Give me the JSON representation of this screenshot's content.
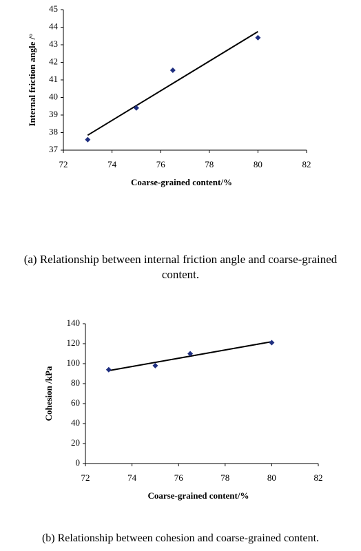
{
  "chart_data": [
    {
      "type": "scatter",
      "x_label": "Coarse-grained content/%",
      "y_label": "Internal friction angle /°",
      "caption": "(a) Relationship between internal friction angle and coarse-grained content.",
      "x": [
        73,
        75,
        76.5,
        80
      ],
      "values": [
        37.6,
        39.4,
        41.55,
        43.4
      ],
      "color": "#1f2f80",
      "trendline": {
        "x": [
          73,
          80
        ],
        "values": [
          37.85,
          43.75
        ],
        "color": "#000000"
      },
      "xlim": [
        72,
        82
      ],
      "xticks": [
        72,
        74,
        76,
        78,
        80,
        82
      ],
      "ylim": [
        37,
        45
      ],
      "yticks": [
        37,
        38,
        39,
        40,
        41,
        42,
        43,
        44,
        45
      ]
    },
    {
      "type": "scatter",
      "x_label": "Coarse-grained content/%",
      "y_label": "Cohesion /kPa",
      "caption": "(b) Relationship between cohesion and coarse-grained content.",
      "x": [
        73,
        75,
        76.5,
        80
      ],
      "values": [
        94,
        98,
        110,
        121
      ],
      "color": "#1f2f80",
      "trendline": {
        "x": [
          73,
          80
        ],
        "values": [
          93,
          122
        ],
        "color": "#000000"
      },
      "xlim": [
        72,
        82
      ],
      "xticks": [
        72,
        74,
        76,
        78,
        80,
        82
      ],
      "ylim": [
        0,
        140
      ],
      "yticks": [
        0,
        20,
        40,
        60,
        80,
        100,
        120,
        140
      ]
    }
  ]
}
